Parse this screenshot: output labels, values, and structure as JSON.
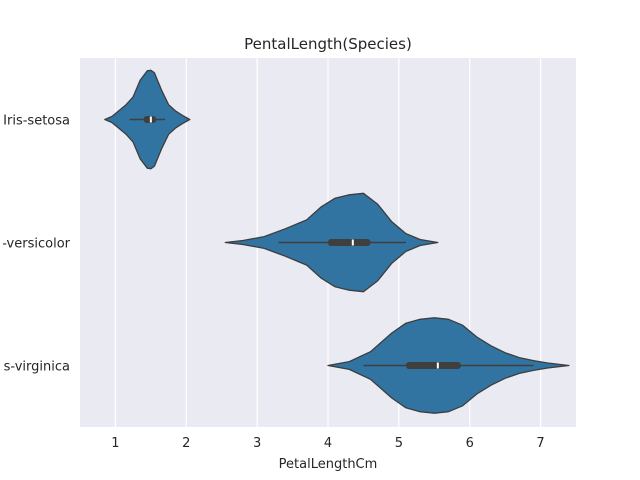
{
  "chart_data": {
    "type": "violin",
    "title": "PentalLength(Species)",
    "xlabel": "PetalLengthCm",
    "ylabel": "",
    "xlim": [
      0.5,
      7.5
    ],
    "x_ticks": [
      1,
      2,
      3,
      4,
      5,
      6,
      7
    ],
    "orientation": "horizontal",
    "grid": true,
    "background_color": "#eaeaf2",
    "grid_color": "#ffffff",
    "violin_color": "#3274a1",
    "inner_box_color": "#3f3f3f",
    "categories": [
      "Iris-setosa",
      "Iris-versicolor",
      "Iris-virginica"
    ],
    "category_labels": [
      "Iris-setosa",
      "-versicolor",
      "s-virginica"
    ],
    "violins": [
      {
        "name": "Iris-setosa",
        "q1": 1.4,
        "median": 1.5,
        "q3": 1.575,
        "whisker_low": 1.2,
        "whisker_high": 1.7,
        "density": [
          [
            0.85,
            0.0
          ],
          [
            0.95,
            0.06
          ],
          [
            1.05,
            0.18
          ],
          [
            1.15,
            0.3
          ],
          [
            1.25,
            0.46
          ],
          [
            1.35,
            0.8
          ],
          [
            1.45,
            0.99
          ],
          [
            1.5,
            1.0
          ],
          [
            1.55,
            0.95
          ],
          [
            1.65,
            0.6
          ],
          [
            1.75,
            0.3
          ],
          [
            1.85,
            0.17
          ],
          [
            1.95,
            0.08
          ],
          [
            2.05,
            0.0
          ]
        ]
      },
      {
        "name": "Iris-versicolor",
        "q1": 4.0,
        "median": 4.35,
        "q3": 4.6,
        "whisker_low": 3.3,
        "whisker_high": 5.1,
        "density": [
          [
            2.55,
            0.0
          ],
          [
            2.8,
            0.04
          ],
          [
            3.1,
            0.12
          ],
          [
            3.4,
            0.28
          ],
          [
            3.7,
            0.46
          ],
          [
            3.9,
            0.72
          ],
          [
            4.1,
            0.9
          ],
          [
            4.3,
            0.97
          ],
          [
            4.5,
            1.0
          ],
          [
            4.7,
            0.78
          ],
          [
            4.9,
            0.42
          ],
          [
            5.1,
            0.18
          ],
          [
            5.3,
            0.06
          ],
          [
            5.55,
            0.0
          ]
        ]
      },
      {
        "name": "Iris-virginica",
        "q1": 5.1,
        "median": 5.55,
        "q3": 5.875,
        "whisker_low": 4.5,
        "whisker_high": 6.9,
        "density": [
          [
            4.0,
            0.0
          ],
          [
            4.3,
            0.08
          ],
          [
            4.6,
            0.28
          ],
          [
            4.9,
            0.66
          ],
          [
            5.1,
            0.86
          ],
          [
            5.3,
            0.94
          ],
          [
            5.5,
            0.97
          ],
          [
            5.7,
            0.94
          ],
          [
            5.9,
            0.82
          ],
          [
            6.1,
            0.58
          ],
          [
            6.3,
            0.4
          ],
          [
            6.5,
            0.26
          ],
          [
            6.7,
            0.16
          ],
          [
            6.9,
            0.1
          ],
          [
            7.1,
            0.05
          ],
          [
            7.4,
            0.0
          ]
        ]
      }
    ]
  }
}
